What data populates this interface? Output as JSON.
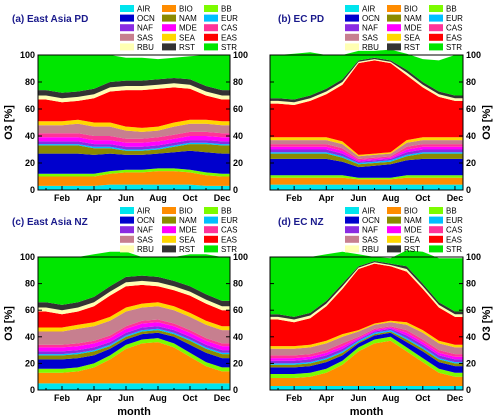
{
  "page": {
    "xlabel": "month",
    "ylabel": "O3 [%]"
  },
  "legend_entries": [
    {
      "name": "AIR",
      "color": "#00e5ee"
    },
    {
      "name": "BIO",
      "color": "#ff8c00"
    },
    {
      "name": "BB",
      "color": "#7cfc00"
    },
    {
      "name": "OCN",
      "color": "#0000cd"
    },
    {
      "name": "NAM",
      "color": "#8b8b00"
    },
    {
      "name": "EUR",
      "color": "#00bfff"
    },
    {
      "name": "NAF",
      "color": "#8a2be2"
    },
    {
      "name": "MDE",
      "color": "#ff00ff"
    },
    {
      "name": "CAS",
      "color": "#ff3399"
    },
    {
      "name": "SAS",
      "color": "#c77f8f"
    },
    {
      "name": "SEA",
      "color": "#ffd700"
    },
    {
      "name": "EAS",
      "color": "#ff0000"
    },
    {
      "name": "RBU",
      "color": "#ffffb3"
    },
    {
      "name": "RST",
      "color": "#333333"
    },
    {
      "name": "STR",
      "color": "#00e600"
    }
  ],
  "chart_data": [
    {
      "type": "area",
      "title": "(a) East Asia  PD",
      "x": [
        1,
        2,
        3,
        4,
        5,
        6,
        7,
        8,
        9,
        10,
        11,
        12
      ],
      "xticks": [
        "Feb",
        "Apr",
        "Jun",
        "Aug",
        "Oct",
        "Dec"
      ],
      "ylim": [
        0,
        100
      ],
      "yticks": [
        0,
        20,
        40,
        60,
        80,
        100
      ],
      "xlabel": "",
      "ylabel": "O3 [%]",
      "stacked": true,
      "series": [
        {
          "name": "AIR",
          "values": [
            3,
            3,
            3,
            3,
            4,
            4,
            4,
            4,
            4,
            4,
            3,
            3
          ]
        },
        {
          "name": "BIO",
          "values": [
            7,
            7,
            7,
            7,
            8,
            9,
            9,
            10,
            10,
            9,
            8,
            7
          ]
        },
        {
          "name": "BB",
          "values": [
            2,
            2,
            2,
            2,
            2,
            2,
            2,
            2,
            2,
            2,
            2,
            2
          ]
        },
        {
          "name": "OCN",
          "values": [
            15,
            15,
            15,
            14,
            13,
            11,
            11,
            11,
            12,
            14,
            15,
            15
          ]
        },
        {
          "name": "NAM",
          "values": [
            6,
            6,
            6,
            5,
            4,
            3,
            3,
            3,
            4,
            5,
            6,
            6
          ]
        },
        {
          "name": "EUR",
          "values": [
            1,
            1,
            1,
            1,
            1,
            1,
            1,
            1,
            1,
            1,
            1,
            1
          ]
        },
        {
          "name": "NAF",
          "values": [
            2,
            2,
            2,
            2,
            2,
            2,
            2,
            2,
            2,
            2,
            2,
            2
          ]
        },
        {
          "name": "MDE",
          "values": [
            3,
            3,
            3,
            3,
            3,
            3,
            3,
            3,
            3,
            3,
            3,
            3
          ]
        },
        {
          "name": "CAS",
          "values": [
            3,
            3,
            3,
            3,
            3,
            3,
            3,
            3,
            3,
            3,
            3,
            3
          ]
        },
        {
          "name": "SAS",
          "values": [
            6,
            6,
            7,
            7,
            7,
            6,
            5,
            5,
            6,
            6,
            6,
            6
          ]
        },
        {
          "name": "SEA",
          "values": [
            3,
            3,
            3,
            3,
            3,
            3,
            3,
            3,
            3,
            3,
            3,
            3
          ]
        },
        {
          "name": "EAS",
          "values": [
            16,
            14,
            14,
            18,
            23,
            27,
            28,
            28,
            26,
            23,
            18,
            16
          ]
        },
        {
          "name": "RBU",
          "values": [
            3,
            3,
            3,
            3,
            3,
            3,
            3,
            3,
            3,
            3,
            3,
            3
          ]
        },
        {
          "name": "RST",
          "values": [
            4,
            4,
            4,
            4,
            4,
            4,
            4,
            4,
            4,
            4,
            4,
            4
          ]
        },
        {
          "name": "STR",
          "values": [
            26,
            28,
            27,
            25,
            20,
            17,
            17,
            15,
            15,
            17,
            23,
            26
          ]
        }
      ]
    },
    {
      "type": "area",
      "title": "(b) EC  PD",
      "x": [
        1,
        2,
        3,
        4,
        5,
        6,
        7,
        8,
        9,
        10,
        11,
        12
      ],
      "xticks": [
        "Feb",
        "Apr",
        "Jun",
        "Aug",
        "Oct",
        "Dec"
      ],
      "ylim": [
        0,
        100
      ],
      "yticks": [
        0,
        20,
        40,
        60,
        80,
        100
      ],
      "xlabel": "",
      "ylabel": "O3 [%]",
      "stacked": true,
      "series": [
        {
          "name": "AIR",
          "values": [
            4,
            4,
            4,
            4,
            4,
            4,
            4,
            4,
            4,
            4,
            4,
            4
          ]
        },
        {
          "name": "BIO",
          "values": [
            5,
            5,
            5,
            5,
            5,
            4,
            4,
            4,
            5,
            5,
            5,
            5
          ]
        },
        {
          "name": "BB",
          "values": [
            2,
            2,
            2,
            2,
            2,
            1,
            1,
            1,
            2,
            2,
            2,
            2
          ]
        },
        {
          "name": "OCN",
          "values": [
            12,
            12,
            12,
            12,
            10,
            8,
            9,
            10,
            11,
            12,
            12,
            12
          ]
        },
        {
          "name": "NAM",
          "values": [
            4,
            4,
            4,
            4,
            3,
            2,
            2,
            2,
            3,
            4,
            4,
            4
          ]
        },
        {
          "name": "EUR",
          "values": [
            1,
            1,
            1,
            1,
            1,
            1,
            1,
            1,
            1,
            1,
            1,
            1
          ]
        },
        {
          "name": "NAF",
          "values": [
            2,
            2,
            2,
            2,
            2,
            1,
            1,
            1,
            2,
            2,
            2,
            2
          ]
        },
        {
          "name": "MDE",
          "values": [
            2,
            2,
            2,
            2,
            2,
            1,
            1,
            1,
            2,
            2,
            2,
            2
          ]
        },
        {
          "name": "CAS",
          "values": [
            2,
            2,
            2,
            2,
            2,
            1,
            1,
            1,
            2,
            2,
            2,
            2
          ]
        },
        {
          "name": "SAS",
          "values": [
            3,
            3,
            3,
            3,
            3,
            2,
            2,
            2,
            3,
            3,
            3,
            3
          ]
        },
        {
          "name": "SEA",
          "values": [
            2,
            2,
            2,
            2,
            2,
            1,
            1,
            1,
            2,
            2,
            2,
            2
          ]
        },
        {
          "name": "EAS",
          "values": [
            25,
            24,
            27,
            32,
            42,
            68,
            69,
            66,
            48,
            37,
            30,
            27
          ]
        },
        {
          "name": "RBU",
          "values": [
            2,
            2,
            2,
            2,
            2,
            1,
            1,
            1,
            2,
            2,
            2,
            2
          ]
        },
        {
          "name": "RST",
          "values": [
            2,
            2,
            2,
            2,
            2,
            1,
            1,
            1,
            2,
            2,
            2,
            2
          ]
        },
        {
          "name": "STR",
          "values": [
            32,
            34,
            32,
            25,
            18,
            7,
            5,
            8,
            12,
            17,
            23,
            30
          ]
        }
      ]
    },
    {
      "type": "area",
      "title": "(c) East Asia  NZ",
      "x": [
        1,
        2,
        3,
        4,
        5,
        6,
        7,
        8,
        9,
        10,
        11,
        12
      ],
      "xticks": [
        "Feb",
        "Apr",
        "Jun",
        "Aug",
        "Oct",
        "Dec"
      ],
      "ylim": [
        0,
        100
      ],
      "yticks": [
        0,
        20,
        40,
        60,
        80,
        100
      ],
      "xlabel": "month",
      "ylabel": "O3 [%]",
      "stacked": true,
      "series": [
        {
          "name": "AIR",
          "values": [
            5,
            5,
            5,
            5,
            5,
            5,
            5,
            5,
            5,
            5,
            5,
            5
          ]
        },
        {
          "name": "BIO",
          "values": [
            8,
            8,
            9,
            12,
            18,
            26,
            30,
            31,
            27,
            20,
            13,
            9
          ]
        },
        {
          "name": "BB",
          "values": [
            3,
            3,
            3,
            3,
            3,
            3,
            3,
            3,
            3,
            3,
            3,
            3
          ]
        },
        {
          "name": "OCN",
          "values": [
            7,
            7,
            7,
            6,
            5,
            4,
            4,
            4,
            5,
            6,
            7,
            7
          ]
        },
        {
          "name": "NAM",
          "values": [
            3,
            3,
            3,
            3,
            2,
            2,
            2,
            2,
            2,
            3,
            3,
            3
          ]
        },
        {
          "name": "EUR",
          "values": [
            1,
            1,
            1,
            1,
            1,
            1,
            1,
            1,
            1,
            1,
            1,
            1
          ]
        },
        {
          "name": "NAF",
          "values": [
            2,
            2,
            2,
            2,
            2,
            2,
            2,
            2,
            2,
            2,
            2,
            2
          ]
        },
        {
          "name": "MDE",
          "values": [
            3,
            3,
            3,
            3,
            3,
            3,
            3,
            3,
            3,
            3,
            3,
            3
          ]
        },
        {
          "name": "CAS",
          "values": [
            2,
            2,
            2,
            2,
            2,
            2,
            2,
            2,
            2,
            2,
            2,
            2
          ]
        },
        {
          "name": "SAS",
          "values": [
            10,
            10,
            11,
            11,
            11,
            11,
            10,
            10,
            10,
            10,
            10,
            10
          ]
        },
        {
          "name": "SEA",
          "values": [
            3,
            3,
            3,
            3,
            3,
            3,
            3,
            3,
            3,
            3,
            3,
            3
          ]
        },
        {
          "name": "EAS",
          "values": [
            12,
            10,
            10,
            12,
            16,
            16,
            14,
            12,
            12,
            13,
            13,
            12
          ]
        },
        {
          "name": "RBU",
          "values": [
            3,
            3,
            3,
            3,
            3,
            3,
            3,
            3,
            3,
            3,
            3,
            3
          ]
        },
        {
          "name": "RST",
          "values": [
            4,
            4,
            4,
            4,
            4,
            4,
            4,
            4,
            4,
            4,
            4,
            4
          ]
        },
        {
          "name": "STR",
          "values": [
            34,
            36,
            34,
            32,
            26,
            19,
            14,
            15,
            18,
            24,
            30,
            33
          ]
        }
      ]
    },
    {
      "type": "area",
      "title": "(d) EC  NZ",
      "x": [
        1,
        2,
        3,
        4,
        5,
        6,
        7,
        8,
        9,
        10,
        11,
        12
      ],
      "xticks": [
        "Feb",
        "Apr",
        "Jun",
        "Aug",
        "Oct",
        "Dec"
      ],
      "ylim": [
        0,
        100
      ],
      "yticks": [
        0,
        20,
        40,
        60,
        80,
        100
      ],
      "xlabel": "month",
      "ylabel": "O3 [%]",
      "stacked": true,
      "series": [
        {
          "name": "AIR",
          "values": [
            3,
            3,
            3,
            3,
            3,
            3,
            3,
            3,
            3,
            3,
            3,
            3
          ]
        },
        {
          "name": "BIO",
          "values": [
            6,
            6,
            7,
            10,
            16,
            26,
            32,
            34,
            26,
            18,
            10,
            7
          ]
        },
        {
          "name": "BB",
          "values": [
            3,
            3,
            3,
            3,
            3,
            3,
            3,
            3,
            3,
            3,
            3,
            3
          ]
        },
        {
          "name": "OCN",
          "values": [
            5,
            5,
            5,
            5,
            4,
            3,
            3,
            3,
            4,
            5,
            5,
            5
          ]
        },
        {
          "name": "NAM",
          "values": [
            2,
            2,
            2,
            2,
            2,
            1,
            1,
            1,
            2,
            2,
            2,
            2
          ]
        },
        {
          "name": "EUR",
          "values": [
            1,
            1,
            1,
            1,
            1,
            1,
            1,
            1,
            1,
            1,
            1,
            1
          ]
        },
        {
          "name": "NAF",
          "values": [
            2,
            2,
            2,
            2,
            2,
            1,
            1,
            1,
            2,
            2,
            2,
            2
          ]
        },
        {
          "name": "MDE",
          "values": [
            2,
            2,
            2,
            2,
            2,
            1,
            1,
            1,
            2,
            2,
            2,
            2
          ]
        },
        {
          "name": "CAS",
          "values": [
            2,
            2,
            2,
            2,
            2,
            1,
            1,
            1,
            2,
            2,
            2,
            2
          ]
        },
        {
          "name": "SAS",
          "values": [
            5,
            5,
            5,
            5,
            5,
            4,
            3,
            3,
            4,
            5,
            5,
            5
          ]
        },
        {
          "name": "SEA",
          "values": [
            2,
            2,
            2,
            2,
            2,
            1,
            1,
            1,
            2,
            2,
            2,
            2
          ]
        },
        {
          "name": "EAS",
          "values": [
            20,
            18,
            20,
            26,
            34,
            46,
            45,
            41,
            38,
            31,
            25,
            21
          ]
        },
        {
          "name": "RBU",
          "values": [
            2,
            2,
            2,
            2,
            2,
            1,
            1,
            1,
            2,
            2,
            2,
            2
          ]
        },
        {
          "name": "RST",
          "values": [
            2,
            2,
            2,
            2,
            2,
            1,
            1,
            1,
            2,
            2,
            2,
            2
          ]
        },
        {
          "name": "STR",
          "values": [
            43,
            45,
            42,
            35,
            24,
            9,
            3,
            4,
            12,
            24,
            33,
            40
          ]
        }
      ]
    }
  ]
}
